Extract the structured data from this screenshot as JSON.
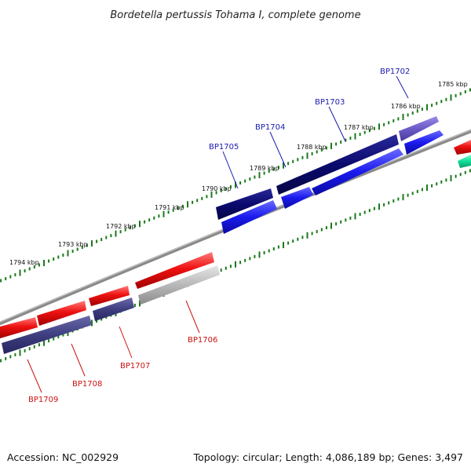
{
  "title": "Bordetella pertussis Tohama I, complete genome",
  "footer": {
    "accession": "Accession: NC_002929",
    "meta": "Topology: circular; Length: 4,086,189 bp; Genes: 3,497"
  },
  "ruler_labels": [
    "1785 kbp",
    "1786 kbp",
    "1787 kbp",
    "1788 kbp",
    "1789 kbp",
    "1790 kbp",
    "1791 kbp",
    "1792 kbp",
    "1793 kbp",
    "1794 kbp"
  ],
  "genes_top": [
    "BP1702",
    "BP1703",
    "BP1704",
    "BP1705"
  ],
  "genes_bottom": [
    "BP1706",
    "BP1707",
    "BP1708",
    "BP1709"
  ],
  "colors": {
    "navy": "#0a0a6e",
    "blue": "#1a1aee",
    "purple": "#6b5bc8",
    "red": "#ee1111",
    "gray": "#b8b8b8",
    "slate": "#3e3e80",
    "green": "#11dd99",
    "tick_green": "#1a7a1a",
    "backbone": "#8a8a8a",
    "label_blue": "#1a1ab0",
    "label_red": "#cc1111"
  }
}
